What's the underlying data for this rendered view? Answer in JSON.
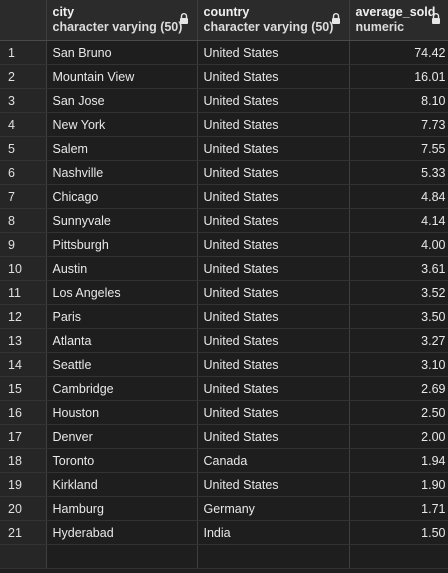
{
  "columns": {
    "city": {
      "name": "city",
      "type": "character varying (50)",
      "locked": true
    },
    "country": {
      "name": "country",
      "type": "character varying (50)",
      "locked": true
    },
    "average_sold": {
      "name": "average_sold",
      "type": "numeric",
      "locked": true
    }
  },
  "rows": [
    {
      "index": "1",
      "city": "San Bruno",
      "country": "United States",
      "average_sold": "74.42"
    },
    {
      "index": "2",
      "city": "Mountain View",
      "country": "United States",
      "average_sold": "16.01"
    },
    {
      "index": "3",
      "city": "San Jose",
      "country": "United States",
      "average_sold": "8.10"
    },
    {
      "index": "4",
      "city": "New York",
      "country": "United States",
      "average_sold": "7.73"
    },
    {
      "index": "5",
      "city": "Salem",
      "country": "United States",
      "average_sold": "7.55"
    },
    {
      "index": "6",
      "city": "Nashville",
      "country": "United States",
      "average_sold": "5.33"
    },
    {
      "index": "7",
      "city": "Chicago",
      "country": "United States",
      "average_sold": "4.84"
    },
    {
      "index": "8",
      "city": "Sunnyvale",
      "country": "United States",
      "average_sold": "4.14"
    },
    {
      "index": "9",
      "city": "Pittsburgh",
      "country": "United States",
      "average_sold": "4.00"
    },
    {
      "index": "10",
      "city": "Austin",
      "country": "United States",
      "average_sold": "3.61"
    },
    {
      "index": "11",
      "city": "Los Angeles",
      "country": "United States",
      "average_sold": "3.52"
    },
    {
      "index": "12",
      "city": "Paris",
      "country": "United States",
      "average_sold": "3.50"
    },
    {
      "index": "13",
      "city": "Atlanta",
      "country": "United States",
      "average_sold": "3.27"
    },
    {
      "index": "14",
      "city": "Seattle",
      "country": "United States",
      "average_sold": "3.10"
    },
    {
      "index": "15",
      "city": "Cambridge",
      "country": "United States",
      "average_sold": "2.69"
    },
    {
      "index": "16",
      "city": "Houston",
      "country": "United States",
      "average_sold": "2.50"
    },
    {
      "index": "17",
      "city": "Denver",
      "country": "United States",
      "average_sold": "2.00"
    },
    {
      "index": "18",
      "city": "Toronto",
      "country": "Canada",
      "average_sold": "1.94"
    },
    {
      "index": "19",
      "city": "Kirkland",
      "country": "United States",
      "average_sold": "1.90"
    },
    {
      "index": "20",
      "city": "Hamburg",
      "country": "Germany",
      "average_sold": "1.71"
    },
    {
      "index": "21",
      "city": "Hyderabad",
      "country": "India",
      "average_sold": "1.50"
    }
  ],
  "icons": {
    "column_lock": "lock-icon"
  },
  "colors": {
    "background": "#1e1e1e",
    "header": "#2b2b2b",
    "grid_line": "#3e3e3e"
  }
}
